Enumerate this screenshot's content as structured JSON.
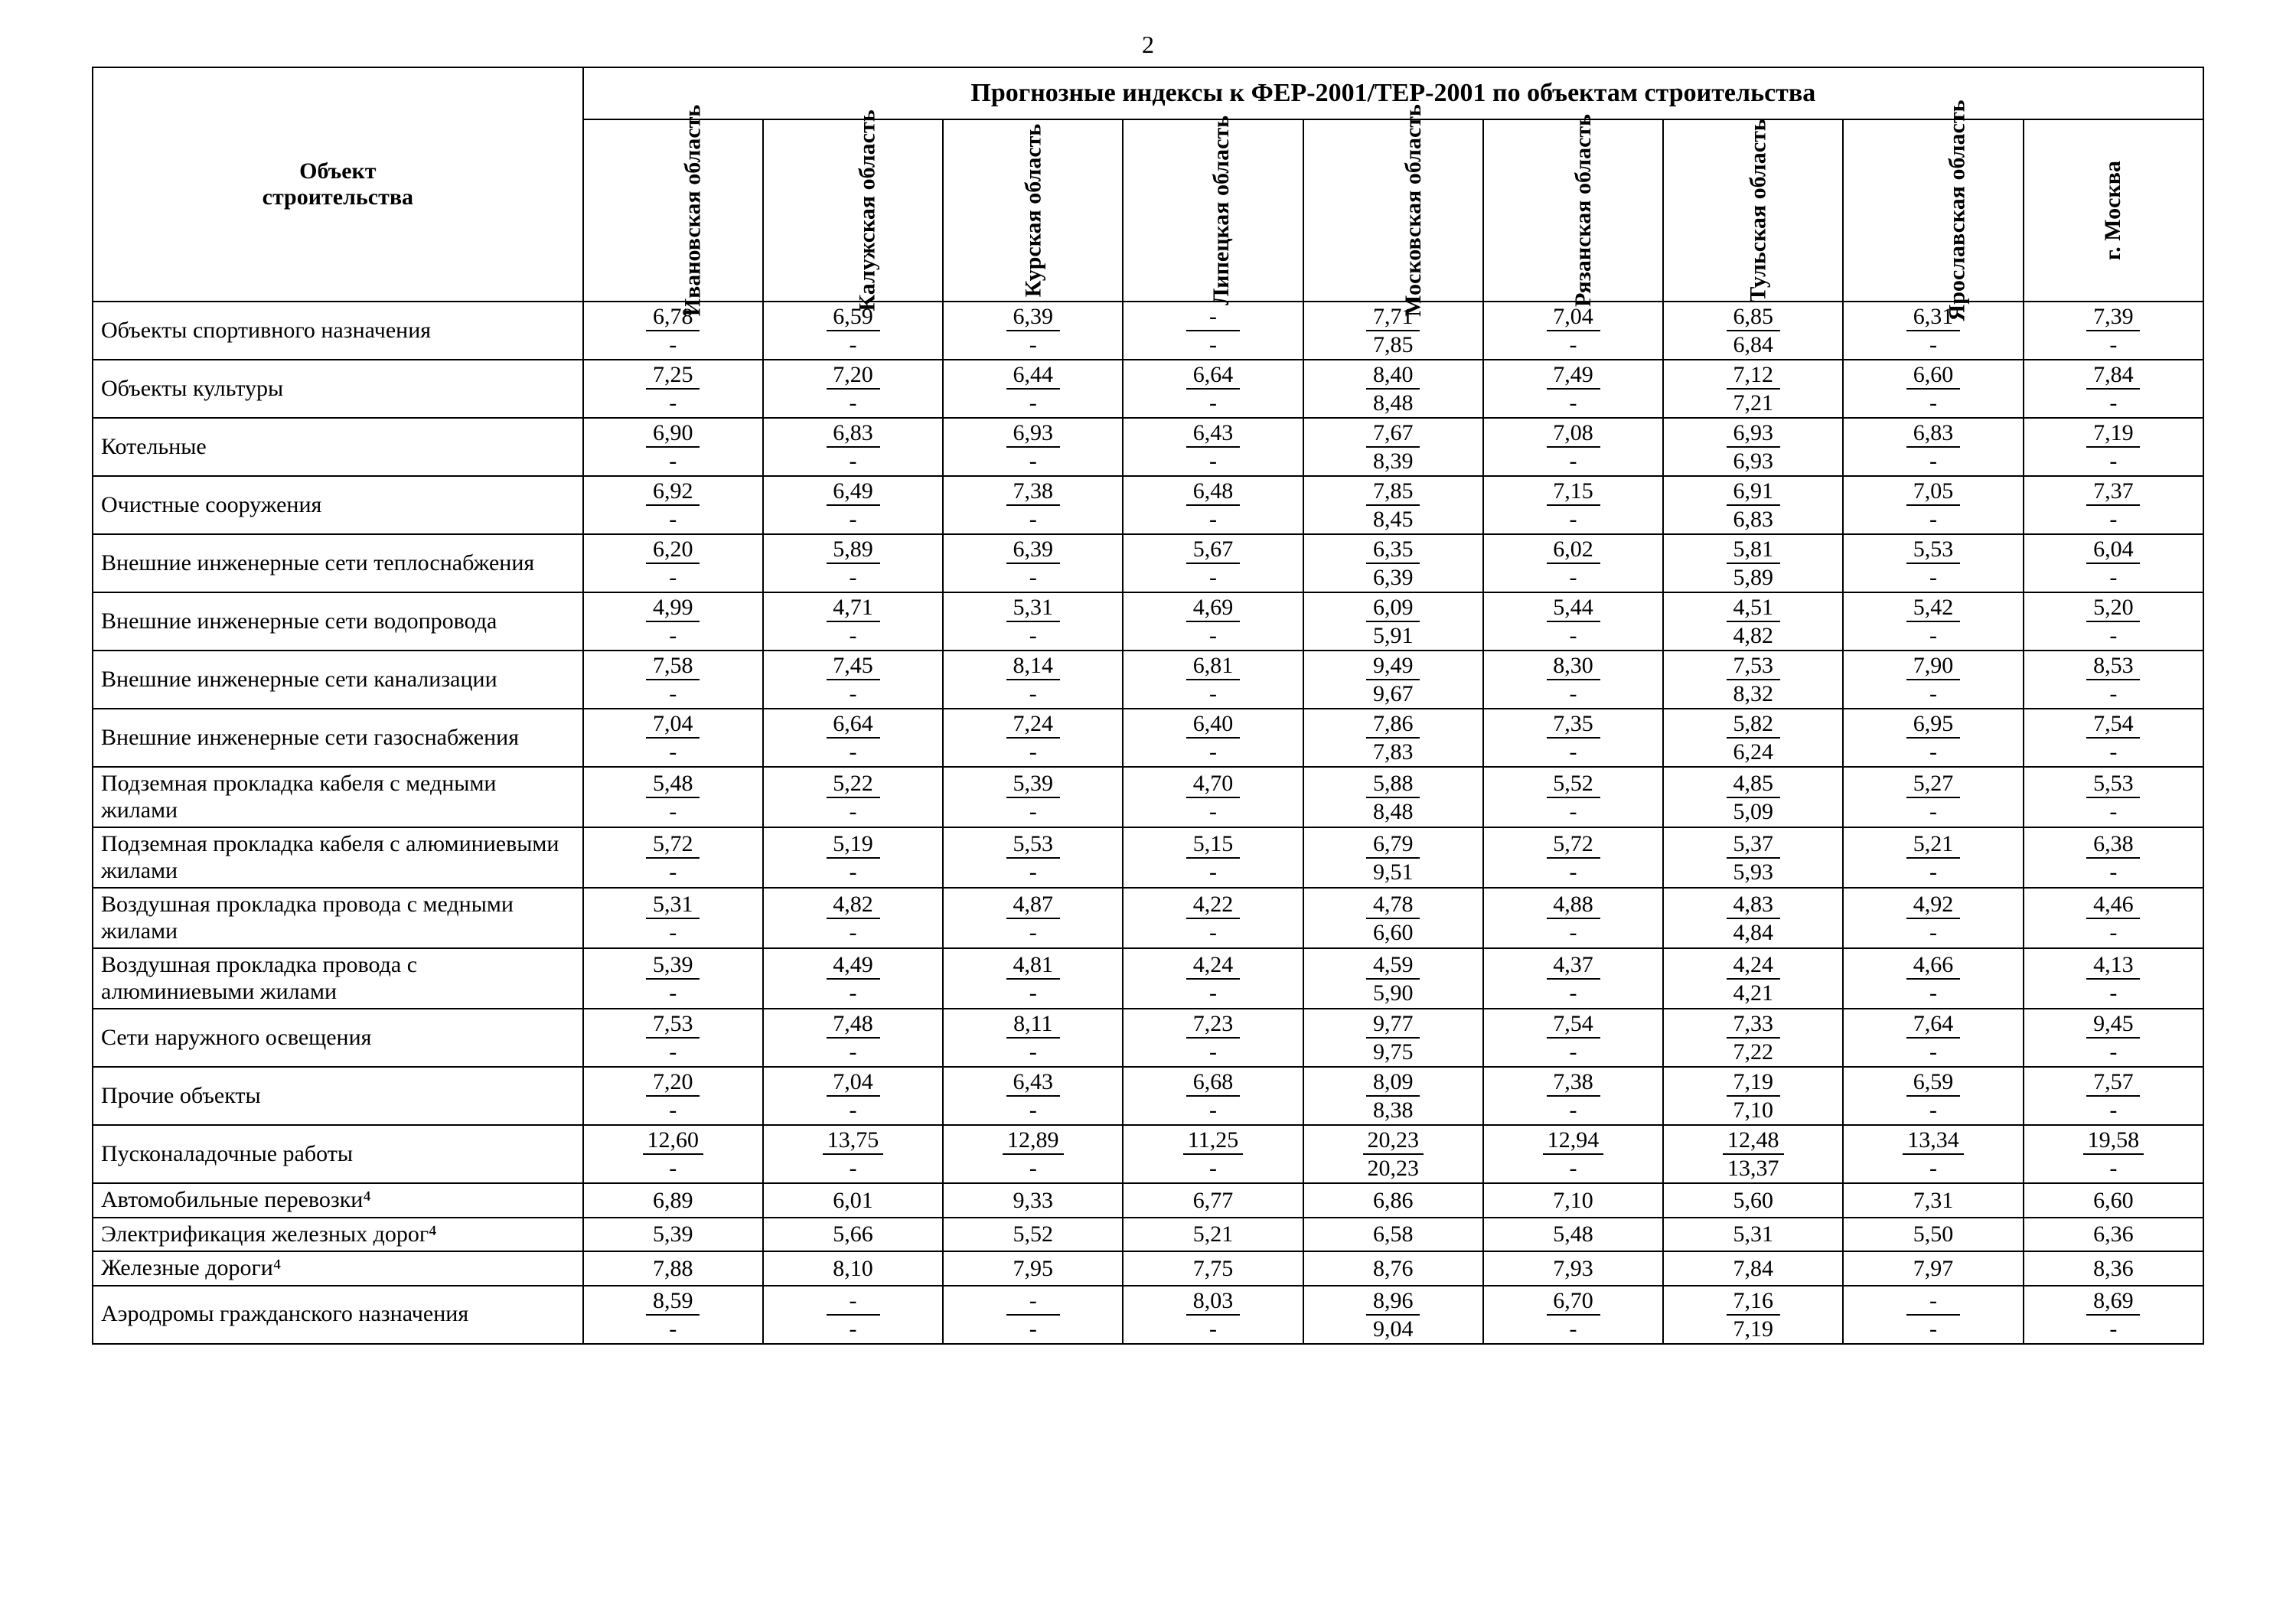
{
  "page_number": "2",
  "table_title": "Прогнозные индексы к ФЕР-2001/ТЕР-2001 по объектам строительства",
  "object_header": "Объект\nстроительства",
  "columns": [
    "Ивановская область",
    "Калужская область",
    "Курская область",
    "Липецкая область",
    "Московская область",
    "Рязанская область",
    "Тульская область",
    "Ярославская область",
    "г. Москва"
  ],
  "rows": [
    {
      "label": "Объекты спортивного назначения",
      "type": "pair",
      "cells": [
        {
          "t": "6,78",
          "b": "-"
        },
        {
          "t": "6,59",
          "b": "-"
        },
        {
          "t": "6,39",
          "b": "-"
        },
        {
          "t": "-",
          "b": "-"
        },
        {
          "t": "7,71",
          "b": "7,85"
        },
        {
          "t": "7,04",
          "b": "-"
        },
        {
          "t": "6,85",
          "b": "6,84"
        },
        {
          "t": "6,31",
          "b": "-"
        },
        {
          "t": "7,39",
          "b": "-"
        }
      ]
    },
    {
      "label": "Объекты культуры",
      "type": "pair",
      "cells": [
        {
          "t": "7,25",
          "b": "-"
        },
        {
          "t": "7,20",
          "b": "-"
        },
        {
          "t": "6,44",
          "b": "-"
        },
        {
          "t": "6,64",
          "b": "-"
        },
        {
          "t": "8,40",
          "b": "8,48"
        },
        {
          "t": "7,49",
          "b": "-"
        },
        {
          "t": "7,12",
          "b": "7,21"
        },
        {
          "t": "6,60",
          "b": "-"
        },
        {
          "t": "7,84",
          "b": "-"
        }
      ]
    },
    {
      "label": "Котельные",
      "type": "pair",
      "cells": [
        {
          "t": "6,90",
          "b": "-"
        },
        {
          "t": "6,83",
          "b": "-"
        },
        {
          "t": "6,93",
          "b": "-"
        },
        {
          "t": "6,43",
          "b": "-"
        },
        {
          "t": "7,67",
          "b": "8,39"
        },
        {
          "t": "7,08",
          "b": "-"
        },
        {
          "t": "6,93",
          "b": "6,93"
        },
        {
          "t": "6,83",
          "b": "-"
        },
        {
          "t": "7,19",
          "b": "-"
        }
      ]
    },
    {
      "label": "Очистные сооружения",
      "type": "pair",
      "cells": [
        {
          "t": "6,92",
          "b": "-"
        },
        {
          "t": "6,49",
          "b": "-"
        },
        {
          "t": "7,38",
          "b": "-"
        },
        {
          "t": "6,48",
          "b": "-"
        },
        {
          "t": "7,85",
          "b": "8,45"
        },
        {
          "t": "7,15",
          "b": "-"
        },
        {
          "t": "6,91",
          "b": "6,83"
        },
        {
          "t": "7,05",
          "b": "-"
        },
        {
          "t": "7,37",
          "b": "-"
        }
      ]
    },
    {
      "label": "Внешние инженерные сети теплоснабжения",
      "type": "pair",
      "cells": [
        {
          "t": "6,20",
          "b": "-"
        },
        {
          "t": "5,89",
          "b": "-"
        },
        {
          "t": "6,39",
          "b": "-"
        },
        {
          "t": "5,67",
          "b": "-"
        },
        {
          "t": "6,35",
          "b": "6,39"
        },
        {
          "t": "6,02",
          "b": "-"
        },
        {
          "t": "5,81",
          "b": "5,89"
        },
        {
          "t": "5,53",
          "b": "-"
        },
        {
          "t": "6,04",
          "b": "-"
        }
      ]
    },
    {
      "label": "Внешние инженерные сети водопровода",
      "type": "pair",
      "cells": [
        {
          "t": "4,99",
          "b": "-"
        },
        {
          "t": "4,71",
          "b": "-"
        },
        {
          "t": "5,31",
          "b": "-"
        },
        {
          "t": "4,69",
          "b": "-"
        },
        {
          "t": "6,09",
          "b": "5,91"
        },
        {
          "t": "5,44",
          "b": "-"
        },
        {
          "t": "4,51",
          "b": "4,82"
        },
        {
          "t": "5,42",
          "b": "-"
        },
        {
          "t": "5,20",
          "b": "-"
        }
      ]
    },
    {
      "label": "Внешние инженерные сети канализации",
      "type": "pair",
      "cells": [
        {
          "t": "7,58",
          "b": "-"
        },
        {
          "t": "7,45",
          "b": "-"
        },
        {
          "t": "8,14",
          "b": "-"
        },
        {
          "t": "6,81",
          "b": "-"
        },
        {
          "t": "9,49",
          "b": "9,67"
        },
        {
          "t": "8,30",
          "b": "-"
        },
        {
          "t": "7,53",
          "b": "8,32"
        },
        {
          "t": "7,90",
          "b": "-"
        },
        {
          "t": "8,53",
          "b": "-"
        }
      ]
    },
    {
      "label": "Внешние инженерные сети газоснабжения",
      "type": "pair",
      "cells": [
        {
          "t": "7,04",
          "b": "-"
        },
        {
          "t": "6,64",
          "b": "-"
        },
        {
          "t": "7,24",
          "b": "-"
        },
        {
          "t": "6,40",
          "b": "-"
        },
        {
          "t": "7,86",
          "b": "7,83"
        },
        {
          "t": "7,35",
          "b": "-"
        },
        {
          "t": "5,82",
          "b": "6,24"
        },
        {
          "t": "6,95",
          "b": "-"
        },
        {
          "t": "7,54",
          "b": "-"
        }
      ]
    },
    {
      "label": "Подземная прокладка кабеля с медными жилами",
      "type": "pair",
      "cells": [
        {
          "t": "5,48",
          "b": "-"
        },
        {
          "t": "5,22",
          "b": "-"
        },
        {
          "t": "5,39",
          "b": "-"
        },
        {
          "t": "4,70",
          "b": "-"
        },
        {
          "t": "5,88",
          "b": "8,48"
        },
        {
          "t": "5,52",
          "b": "-"
        },
        {
          "t": "4,85",
          "b": "5,09"
        },
        {
          "t": "5,27",
          "b": "-"
        },
        {
          "t": "5,53",
          "b": "-"
        }
      ]
    },
    {
      "label": "Подземная прокладка кабеля с алюминиевыми жилами",
      "type": "pair",
      "cells": [
        {
          "t": "5,72",
          "b": "-"
        },
        {
          "t": "5,19",
          "b": "-"
        },
        {
          "t": "5,53",
          "b": "-"
        },
        {
          "t": "5,15",
          "b": "-"
        },
        {
          "t": "6,79",
          "b": "9,51"
        },
        {
          "t": "5,72",
          "b": "-"
        },
        {
          "t": "5,37",
          "b": "5,93"
        },
        {
          "t": "5,21",
          "b": "-"
        },
        {
          "t": "6,38",
          "b": "-"
        }
      ]
    },
    {
      "label": "Воздушная прокладка провода с медными жилами",
      "type": "pair",
      "cells": [
        {
          "t": "5,31",
          "b": "-"
        },
        {
          "t": "4,82",
          "b": "-"
        },
        {
          "t": "4,87",
          "b": "-"
        },
        {
          "t": "4,22",
          "b": "-"
        },
        {
          "t": "4,78",
          "b": "6,60"
        },
        {
          "t": "4,88",
          "b": "-"
        },
        {
          "t": "4,83",
          "b": "4,84"
        },
        {
          "t": "4,92",
          "b": "-"
        },
        {
          "t": "4,46",
          "b": "-"
        }
      ]
    },
    {
      "label": "Воздушная прокладка провода с алюминиевыми жилами",
      "type": "pair",
      "cells": [
        {
          "t": "5,39",
          "b": "-"
        },
        {
          "t": "4,49",
          "b": "-"
        },
        {
          "t": "4,81",
          "b": "-"
        },
        {
          "t": "4,24",
          "b": "-"
        },
        {
          "t": "4,59",
          "b": "5,90"
        },
        {
          "t": "4,37",
          "b": "-"
        },
        {
          "t": "4,24",
          "b": "4,21"
        },
        {
          "t": "4,66",
          "b": "-"
        },
        {
          "t": "4,13",
          "b": "-"
        }
      ]
    },
    {
      "label": "Сети наружного освещения",
      "type": "pair",
      "cells": [
        {
          "t": "7,53",
          "b": "-"
        },
        {
          "t": "7,48",
          "b": "-"
        },
        {
          "t": "8,11",
          "b": "-"
        },
        {
          "t": "7,23",
          "b": "-"
        },
        {
          "t": "9,77",
          "b": "9,75"
        },
        {
          "t": "7,54",
          "b": "-"
        },
        {
          "t": "7,33",
          "b": "7,22"
        },
        {
          "t": "7,64",
          "b": "-"
        },
        {
          "t": "9,45",
          "b": "-"
        }
      ]
    },
    {
      "label": "Прочие объекты",
      "type": "pair",
      "cells": [
        {
          "t": "7,20",
          "b": "-"
        },
        {
          "t": "7,04",
          "b": "-"
        },
        {
          "t": "6,43",
          "b": "-"
        },
        {
          "t": "6,68",
          "b": "-"
        },
        {
          "t": "8,09",
          "b": "8,38"
        },
        {
          "t": "7,38",
          "b": "-"
        },
        {
          "t": "7,19",
          "b": "7,10"
        },
        {
          "t": "6,59",
          "b": "-"
        },
        {
          "t": "7,57",
          "b": "-"
        }
      ]
    },
    {
      "label": "Пусконаладочные работы",
      "type": "pair",
      "cells": [
        {
          "t": "12,60",
          "b": "-"
        },
        {
          "t": "13,75",
          "b": "-"
        },
        {
          "t": "12,89",
          "b": "-"
        },
        {
          "t": "11,25",
          "b": "-"
        },
        {
          "t": "20,23",
          "b": "20,23"
        },
        {
          "t": "12,94",
          "b": "-"
        },
        {
          "t": "12,48",
          "b": "13,37"
        },
        {
          "t": "13,34",
          "b": "-"
        },
        {
          "t": "19,58",
          "b": "-"
        }
      ]
    },
    {
      "label": "Автомобильные перевозки⁴",
      "type": "single",
      "cells": [
        {
          "t": "6,89"
        },
        {
          "t": "6,01"
        },
        {
          "t": "9,33"
        },
        {
          "t": "6,77"
        },
        {
          "t": "6,86"
        },
        {
          "t": "7,10"
        },
        {
          "t": "5,60"
        },
        {
          "t": "7,31"
        },
        {
          "t": "6,60"
        }
      ]
    },
    {
      "label": "Электрификация железных дорог⁴",
      "type": "single",
      "cells": [
        {
          "t": "5,39"
        },
        {
          "t": "5,66"
        },
        {
          "t": "5,52"
        },
        {
          "t": "5,21"
        },
        {
          "t": "6,58"
        },
        {
          "t": "5,48"
        },
        {
          "t": "5,31"
        },
        {
          "t": "5,50"
        },
        {
          "t": "6,36"
        }
      ]
    },
    {
      "label": "Железные дороги⁴",
      "type": "single",
      "cells": [
        {
          "t": "7,88"
        },
        {
          "t": "8,10"
        },
        {
          "t": "7,95"
        },
        {
          "t": "7,75"
        },
        {
          "t": "8,76"
        },
        {
          "t": "7,93"
        },
        {
          "t": "7,84"
        },
        {
          "t": "7,97"
        },
        {
          "t": "8,36"
        }
      ]
    },
    {
      "label": "Аэродромы гражданского назначения",
      "type": "pair",
      "cells": [
        {
          "t": "8,59",
          "b": "-"
        },
        {
          "t": "-",
          "b": "-"
        },
        {
          "t": "-",
          "b": "-"
        },
        {
          "t": "8,03",
          "b": "-"
        },
        {
          "t": "8,96",
          "b": "9,04"
        },
        {
          "t": "6,70",
          "b": "-"
        },
        {
          "t": "7,16",
          "b": "7,19"
        },
        {
          "t": "-",
          "b": "-"
        },
        {
          "t": "8,69",
          "b": "-"
        }
      ]
    }
  ]
}
